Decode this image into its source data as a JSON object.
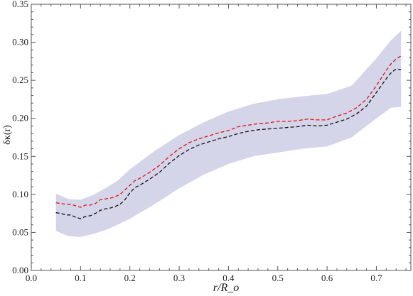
{
  "chart_data": {
    "type": "line",
    "title": "",
    "xlabel": "r/R_o",
    "ylabel": "δκ(r)",
    "xlim": [
      0.0,
      0.77
    ],
    "ylim": [
      0.0,
      0.35
    ],
    "xticks": [
      0.0,
      0.1,
      0.2,
      0.3,
      0.4,
      0.5,
      0.6,
      0.7
    ],
    "xtick_labels": [
      "0.0",
      "0.1",
      "0.2",
      "0.3",
      "0.4",
      "0.5",
      "0.6",
      "0.7"
    ],
    "yticks": [
      0.0,
      0.05,
      0.1,
      0.15,
      0.2,
      0.25,
      0.3,
      0.35
    ],
    "ytick_labels": [
      "0.00",
      "0.05",
      "0.10",
      "0.15",
      "0.20",
      "0.25",
      "0.30",
      "0.35"
    ],
    "grid": false,
    "legend": "none",
    "colors": {
      "band": "#d5d5ea",
      "red_line": "#e01010",
      "black_line": "#111111",
      "axis": "#555555"
    },
    "band": {
      "x": [
        0.05,
        0.075,
        0.1,
        0.125,
        0.15,
        0.175,
        0.2,
        0.25,
        0.3,
        0.35,
        0.4,
        0.45,
        0.5,
        0.55,
        0.6,
        0.65,
        0.7,
        0.73,
        0.75
      ],
      "lower": [
        0.052,
        0.045,
        0.044,
        0.048,
        0.053,
        0.06,
        0.068,
        0.087,
        0.108,
        0.126,
        0.14,
        0.15,
        0.155,
        0.16,
        0.163,
        0.175,
        0.2,
        0.214,
        0.215
      ],
      "upper": [
        0.101,
        0.094,
        0.093,
        0.099,
        0.108,
        0.118,
        0.133,
        0.157,
        0.178,
        0.195,
        0.209,
        0.219,
        0.225,
        0.229,
        0.232,
        0.243,
        0.279,
        0.303,
        0.315
      ]
    },
    "series": [
      {
        "x": [
          0.05,
          0.06,
          0.07,
          0.08,
          0.09,
          0.1,
          0.11,
          0.12,
          0.13,
          0.14,
          0.15,
          0.16,
          0.17,
          0.18,
          0.19,
          0.2,
          0.21,
          0.22,
          0.24,
          0.26,
          0.28,
          0.3,
          0.32,
          0.34,
          0.36,
          0.38,
          0.4,
          0.42,
          0.44,
          0.46,
          0.48,
          0.5,
          0.52,
          0.54,
          0.56,
          0.58,
          0.6,
          0.62,
          0.64,
          0.66,
          0.68,
          0.7,
          0.72,
          0.73,
          0.74,
          0.75
        ],
        "y": [
          0.089,
          0.088,
          0.087,
          0.087,
          0.085,
          0.083,
          0.086,
          0.086,
          0.088,
          0.093,
          0.094,
          0.095,
          0.097,
          0.1,
          0.106,
          0.112,
          0.118,
          0.121,
          0.129,
          0.138,
          0.15,
          0.16,
          0.168,
          0.173,
          0.177,
          0.181,
          0.184,
          0.189,
          0.191,
          0.193,
          0.194,
          0.196,
          0.196,
          0.197,
          0.199,
          0.198,
          0.198,
          0.203,
          0.207,
          0.214,
          0.225,
          0.243,
          0.263,
          0.272,
          0.278,
          0.282
        ]
      },
      {
        "x": [
          0.05,
          0.06,
          0.07,
          0.08,
          0.09,
          0.1,
          0.11,
          0.12,
          0.13,
          0.14,
          0.15,
          0.16,
          0.17,
          0.18,
          0.19,
          0.2,
          0.21,
          0.22,
          0.24,
          0.26,
          0.28,
          0.3,
          0.32,
          0.34,
          0.36,
          0.38,
          0.4,
          0.42,
          0.44,
          0.46,
          0.48,
          0.5,
          0.52,
          0.54,
          0.56,
          0.58,
          0.6,
          0.62,
          0.64,
          0.66,
          0.68,
          0.7,
          0.72,
          0.73,
          0.74,
          0.75
        ],
        "y": [
          0.076,
          0.075,
          0.073,
          0.073,
          0.07,
          0.068,
          0.071,
          0.072,
          0.075,
          0.079,
          0.081,
          0.082,
          0.084,
          0.087,
          0.093,
          0.102,
          0.109,
          0.112,
          0.12,
          0.129,
          0.141,
          0.151,
          0.159,
          0.165,
          0.169,
          0.173,
          0.176,
          0.18,
          0.183,
          0.185,
          0.186,
          0.187,
          0.188,
          0.189,
          0.191,
          0.19,
          0.191,
          0.195,
          0.199,
          0.206,
          0.216,
          0.234,
          0.252,
          0.26,
          0.265,
          0.264
        ]
      }
    ]
  }
}
